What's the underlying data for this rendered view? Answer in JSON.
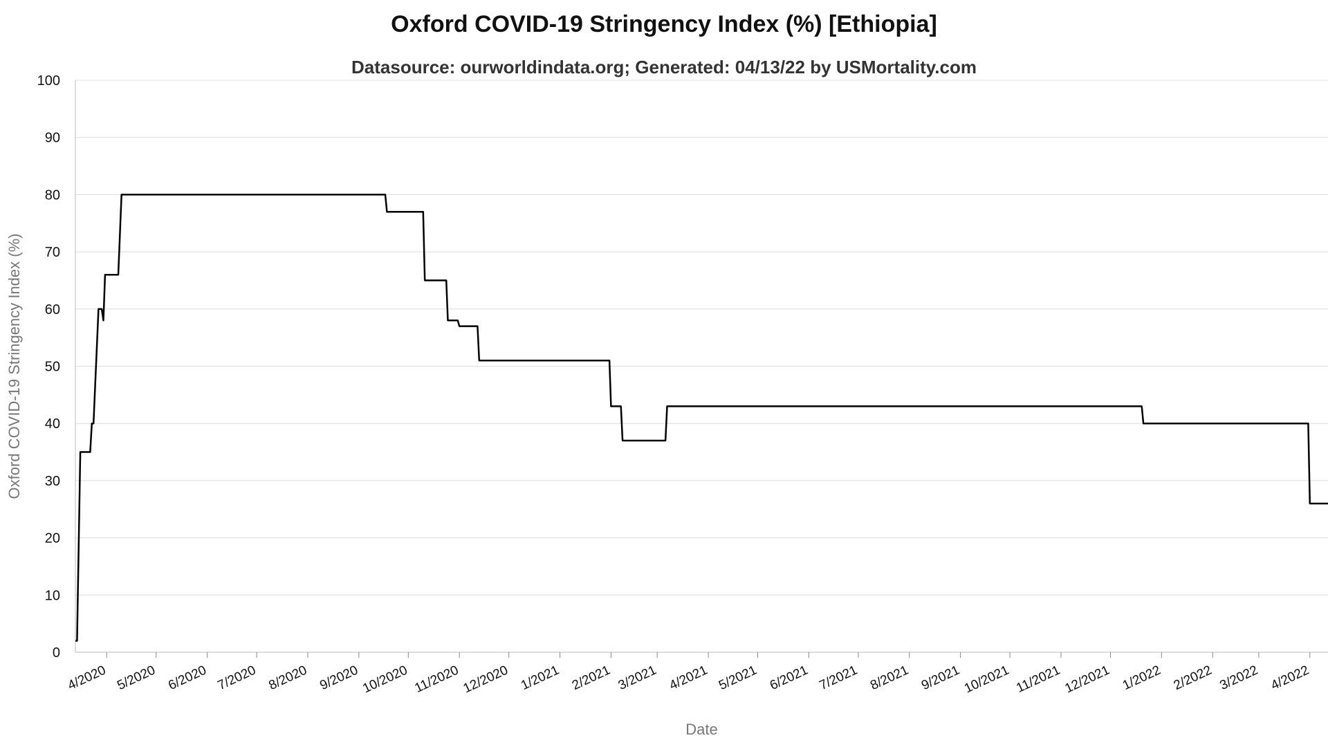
{
  "chart_data": {
    "type": "line",
    "title": "Oxford COVID-19 Stringency Index (%) [Ethiopia]",
    "subtitle": "Datasource: ourworldindata.org; Generated: 04/13/22 by USMortality.com",
    "xlabel": "Date",
    "ylabel": "Oxford COVID-19 Stringency Index (%)",
    "ylim": [
      0,
      100
    ],
    "yticks": [
      0,
      10,
      20,
      30,
      40,
      50,
      60,
      70,
      80,
      90,
      100
    ],
    "xlim": [
      "2020-03-13",
      "2022-04-12"
    ],
    "xticks": [
      {
        "label": "4/2020",
        "date": "2020-04-01"
      },
      {
        "label": "5/2020",
        "date": "2020-05-01"
      },
      {
        "label": "6/2020",
        "date": "2020-06-01"
      },
      {
        "label": "7/2020",
        "date": "2020-07-01"
      },
      {
        "label": "8/2020",
        "date": "2020-08-01"
      },
      {
        "label": "9/2020",
        "date": "2020-09-01"
      },
      {
        "label": "10/2020",
        "date": "2020-10-01"
      },
      {
        "label": "11/2020",
        "date": "2020-11-01"
      },
      {
        "label": "12/2020",
        "date": "2020-12-01"
      },
      {
        "label": "1/2021",
        "date": "2021-01-01"
      },
      {
        "label": "2/2021",
        "date": "2021-02-01"
      },
      {
        "label": "3/2021",
        "date": "2021-03-01"
      },
      {
        "label": "4/2021",
        "date": "2021-04-01"
      },
      {
        "label": "5/2021",
        "date": "2021-05-01"
      },
      {
        "label": "6/2021",
        "date": "2021-06-01"
      },
      {
        "label": "7/2021",
        "date": "2021-07-01"
      },
      {
        "label": "8/2021",
        "date": "2021-08-01"
      },
      {
        "label": "9/2021",
        "date": "2021-09-01"
      },
      {
        "label": "10/2021",
        "date": "2021-10-01"
      },
      {
        "label": "11/2021",
        "date": "2021-11-01"
      },
      {
        "label": "12/2021",
        "date": "2021-12-01"
      },
      {
        "label": "1/2022",
        "date": "2022-01-01"
      },
      {
        "label": "2/2022",
        "date": "2022-02-01"
      },
      {
        "label": "3/2022",
        "date": "2022-03-01"
      },
      {
        "label": "4/2022",
        "date": "2022-04-01"
      }
    ],
    "grid": true,
    "legend": "none",
    "line_color": "#000000",
    "series": [
      {
        "points": [
          {
            "x": "2020-03-13",
            "y": 2
          },
          {
            "x": "2020-03-14",
            "y": 2
          },
          {
            "x": "2020-03-16",
            "y": 35
          },
          {
            "x": "2020-03-22",
            "y": 35
          },
          {
            "x": "2020-03-23",
            "y": 40
          },
          {
            "x": "2020-03-24",
            "y": 40
          },
          {
            "x": "2020-03-27",
            "y": 60
          },
          {
            "x": "2020-03-29",
            "y": 60
          },
          {
            "x": "2020-03-30",
            "y": 58
          },
          {
            "x": "2020-03-31",
            "y": 66
          },
          {
            "x": "2020-04-08",
            "y": 66
          },
          {
            "x": "2020-04-10",
            "y": 80
          },
          {
            "x": "2020-09-17",
            "y": 80
          },
          {
            "x": "2020-09-18",
            "y": 77
          },
          {
            "x": "2020-10-10",
            "y": 77
          },
          {
            "x": "2020-10-11",
            "y": 65
          },
          {
            "x": "2020-10-24",
            "y": 65
          },
          {
            "x": "2020-10-25",
            "y": 58
          },
          {
            "x": "2020-10-31",
            "y": 58
          },
          {
            "x": "2020-11-01",
            "y": 57
          },
          {
            "x": "2020-11-12",
            "y": 57
          },
          {
            "x": "2020-11-13",
            "y": 51
          },
          {
            "x": "2021-01-31",
            "y": 51
          },
          {
            "x": "2021-02-01",
            "y": 43
          },
          {
            "x": "2021-02-07",
            "y": 43
          },
          {
            "x": "2021-02-08",
            "y": 37
          },
          {
            "x": "2021-03-06",
            "y": 37
          },
          {
            "x": "2021-03-07",
            "y": 43
          },
          {
            "x": "2021-12-20",
            "y": 43
          },
          {
            "x": "2021-12-21",
            "y": 40
          },
          {
            "x": "2022-03-31",
            "y": 40
          },
          {
            "x": "2022-04-01",
            "y": 26
          },
          {
            "x": "2022-04-12",
            "y": 26
          }
        ]
      }
    ]
  }
}
